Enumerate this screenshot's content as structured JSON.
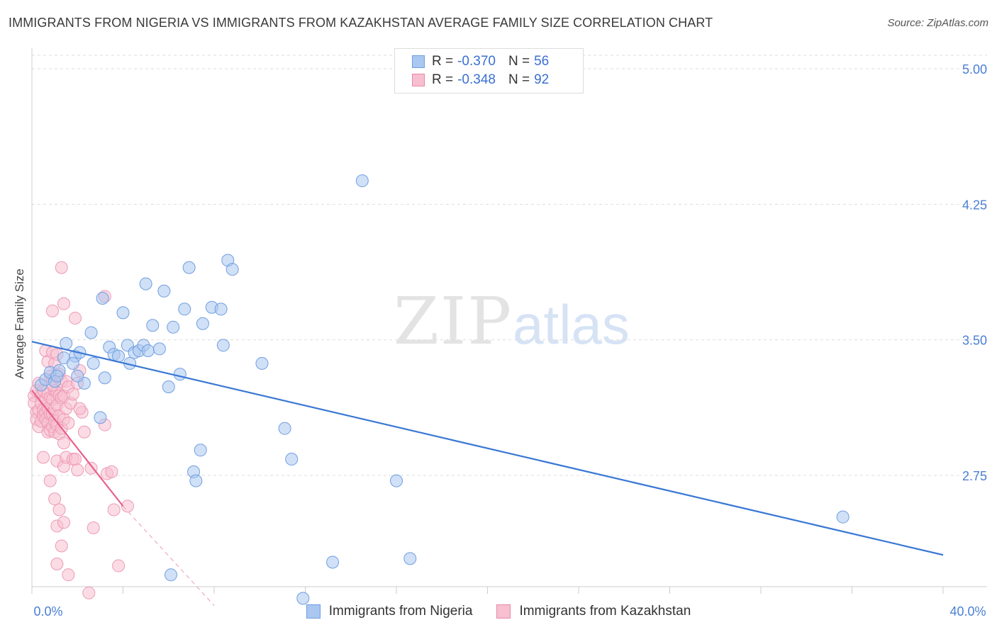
{
  "header": {
    "title": "IMMIGRANTS FROM NIGERIA VS IMMIGRANTS FROM KAZAKHSTAN AVERAGE FAMILY SIZE CORRELATION CHART",
    "source": "Source: ZipAtlas.com"
  },
  "watermark": {
    "zip": "ZIP",
    "atlas": "atlas"
  },
  "legend": {
    "rows": [
      {
        "r_label": "R = ",
        "r_value": "-0.370",
        "n_label": "N = ",
        "n_value": "56",
        "color": "#a9c7f0",
        "border": "#6f9fe0"
      },
      {
        "r_label": "R = ",
        "r_value": "-0.348",
        "n_label": "N = ",
        "n_value": "92",
        "color": "#f7bfd0",
        "border": "#e88aa8"
      }
    ]
  },
  "bottom_legend": {
    "nigeria": "Immigrants from Nigeria",
    "kazakhstan": "Immigrants from Kazakhstan"
  },
  "chart_data": {
    "type": "scatter",
    "title": "IMMIGRANTS FROM NIGERIA VS IMMIGRANTS FROM KAZAKHSTAN AVERAGE FAMILY SIZE CORRELATION CHART",
    "ylabel": "Average Family Size",
    "xlabel": "",
    "xlim": [
      0,
      40
    ],
    "ylim": [
      2.05,
      5.1
    ],
    "x_tick_labels": [
      "0.0%",
      "40.0%"
    ],
    "y_ticks": [
      5.0,
      4.25,
      3.5,
      2.75
    ],
    "y_tick_labels": [
      "5.00",
      "4.25",
      "3.50",
      "2.75"
    ],
    "grid": true,
    "colors": {
      "nigeria": "#3a78d4",
      "nigeria_fill": "#a9c7f0",
      "kazakhstan": "#e8608c",
      "kazakhstan_fill": "#f7bfd0"
    },
    "series": [
      {
        "name": "Immigrants from Nigeria",
        "trend": {
          "x": [
            0,
            40
          ],
          "y": [
            3.49,
            2.31
          ]
        },
        "points": [
          [
            0.4,
            3.25
          ],
          [
            0.6,
            3.28
          ],
          [
            0.8,
            3.32
          ],
          [
            1.0,
            3.27
          ],
          [
            1.2,
            3.33
          ],
          [
            1.5,
            3.48
          ],
          [
            1.4,
            3.4
          ],
          [
            1.9,
            3.41
          ],
          [
            1.8,
            3.37
          ],
          [
            2.1,
            3.43
          ],
          [
            2.3,
            3.26
          ],
          [
            2.6,
            3.54
          ],
          [
            2.7,
            3.37
          ],
          [
            3.1,
            3.73
          ],
          [
            3.2,
            3.29
          ],
          [
            3.0,
            3.07
          ],
          [
            3.4,
            3.46
          ],
          [
            3.6,
            3.42
          ],
          [
            3.8,
            3.41
          ],
          [
            4.0,
            3.65
          ],
          [
            4.2,
            3.47
          ],
          [
            4.3,
            3.37
          ],
          [
            4.5,
            3.43
          ],
          [
            4.7,
            3.44
          ],
          [
            4.9,
            3.47
          ],
          [
            5.1,
            3.44
          ],
          [
            5.0,
            3.81
          ],
          [
            5.3,
            3.58
          ],
          [
            5.6,
            3.45
          ],
          [
            5.8,
            3.77
          ],
          [
            6.0,
            3.24
          ],
          [
            6.2,
            3.57
          ],
          [
            6.5,
            3.31
          ],
          [
            6.7,
            3.67
          ],
          [
            6.9,
            3.9
          ],
          [
            7.1,
            2.77
          ],
          [
            7.2,
            2.72
          ],
          [
            7.4,
            2.89
          ],
          [
            7.5,
            3.59
          ],
          [
            7.9,
            3.68
          ],
          [
            8.3,
            3.67
          ],
          [
            8.4,
            3.47
          ],
          [
            8.6,
            3.94
          ],
          [
            8.8,
            3.89
          ],
          [
            10.1,
            3.37
          ],
          [
            11.1,
            3.01
          ],
          [
            11.4,
            2.84
          ],
          [
            11.9,
            2.07
          ],
          [
            13.2,
            2.27
          ],
          [
            14.5,
            4.38
          ],
          [
            16.0,
            2.72
          ],
          [
            16.6,
            2.29
          ],
          [
            35.6,
            2.52
          ],
          [
            6.1,
            2.2
          ],
          [
            2.0,
            3.3
          ],
          [
            1.1,
            3.3
          ]
        ]
      },
      {
        "name": "Immigrants from Kazakhstan",
        "trend": {
          "x": [
            0,
            4.0
          ],
          "y": [
            3.22,
            2.58
          ]
        },
        "trend_dashed": {
          "x": [
            4.0,
            8.0
          ],
          "y": [
            2.58,
            2.03
          ]
        },
        "points": [
          [
            0.1,
            3.19
          ],
          [
            0.1,
            3.15
          ],
          [
            0.2,
            3.22
          ],
          [
            0.2,
            3.1
          ],
          [
            0.2,
            3.06
          ],
          [
            0.3,
            3.26
          ],
          [
            0.3,
            3.11
          ],
          [
            0.3,
            3.02
          ],
          [
            0.4,
            3.19
          ],
          [
            0.4,
            3.15
          ],
          [
            0.4,
            3.05
          ],
          [
            0.5,
            3.22
          ],
          [
            0.5,
            3.11
          ],
          [
            0.5,
            3.08
          ],
          [
            0.5,
            2.85
          ],
          [
            0.6,
            3.44
          ],
          [
            0.6,
            3.17
          ],
          [
            0.6,
            3.1
          ],
          [
            0.6,
            3.06
          ],
          [
            0.7,
            3.38
          ],
          [
            0.7,
            3.2
          ],
          [
            0.7,
            3.12
          ],
          [
            0.7,
            3.04
          ],
          [
            0.7,
            2.99
          ],
          [
            0.8,
            3.3
          ],
          [
            0.8,
            3.18
          ],
          [
            0.8,
            3.09
          ],
          [
            0.8,
            3.0
          ],
          [
            0.8,
            2.72
          ],
          [
            0.9,
            3.66
          ],
          [
            0.9,
            3.43
          ],
          [
            0.9,
            3.28
          ],
          [
            0.9,
            3.17
          ],
          [
            0.9,
            3.09
          ],
          [
            0.9,
            3.02
          ],
          [
            1.0,
            3.37
          ],
          [
            1.0,
            3.22
          ],
          [
            1.0,
            3.12
          ],
          [
            1.0,
            3.05
          ],
          [
            1.0,
            2.99
          ],
          [
            1.0,
            2.62
          ],
          [
            1.1,
            3.42
          ],
          [
            1.1,
            3.21
          ],
          [
            1.1,
            3.14
          ],
          [
            1.1,
            3.03
          ],
          [
            1.1,
            2.83
          ],
          [
            1.1,
            2.47
          ],
          [
            1.2,
            3.31
          ],
          [
            1.2,
            3.19
          ],
          [
            1.2,
            3.08
          ],
          [
            1.2,
            2.98
          ],
          [
            1.2,
            2.56
          ],
          [
            1.1,
            2.26
          ],
          [
            1.3,
            3.9
          ],
          [
            1.3,
            3.27
          ],
          [
            1.3,
            3.18
          ],
          [
            1.3,
            3.01
          ],
          [
            1.3,
            2.36
          ],
          [
            1.4,
            3.7
          ],
          [
            1.4,
            3.19
          ],
          [
            1.4,
            3.06
          ],
          [
            1.4,
            2.93
          ],
          [
            1.4,
            2.8
          ],
          [
            1.4,
            2.49
          ],
          [
            1.5,
            3.27
          ],
          [
            1.5,
            3.12
          ],
          [
            1.5,
            2.85
          ],
          [
            1.6,
            3.24
          ],
          [
            1.6,
            3.04
          ],
          [
            1.6,
            2.2
          ],
          [
            1.7,
            3.15
          ],
          [
            1.8,
            3.2
          ],
          [
            1.8,
            2.84
          ],
          [
            1.9,
            3.62
          ],
          [
            1.9,
            2.84
          ],
          [
            2.0,
            3.26
          ],
          [
            2.0,
            2.78
          ],
          [
            2.1,
            3.33
          ],
          [
            2.2,
            3.1
          ],
          [
            2.3,
            2.99
          ],
          [
            2.5,
            2.1
          ],
          [
            2.6,
            2.79
          ],
          [
            2.7,
            2.46
          ],
          [
            3.2,
            3.74
          ],
          [
            3.2,
            3.03
          ],
          [
            3.3,
            2.76
          ],
          [
            3.5,
            2.77
          ],
          [
            3.6,
            2.56
          ],
          [
            3.8,
            2.25
          ],
          [
            4.2,
            2.58
          ],
          [
            2.1,
            3.12
          ],
          [
            0.9,
            3.25
          ]
        ]
      }
    ]
  }
}
